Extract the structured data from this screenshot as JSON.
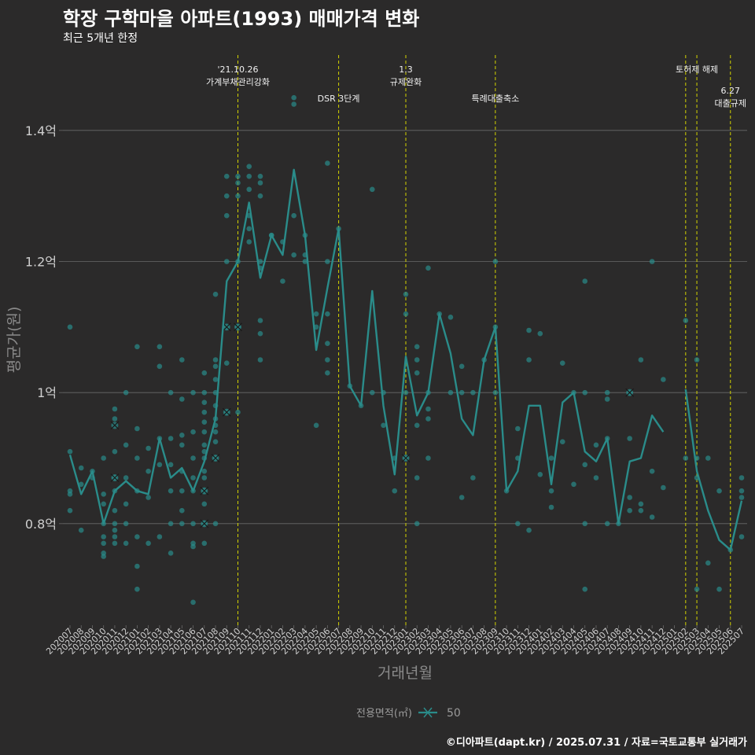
{
  "title": "학장 구학마을 아파트(1993) 매매가격 변화",
  "subtitle": "최근 5개년 한정",
  "credit": "©디아파트(dapt.kr) / 2025.07.31 / 자료=국토교통부 실거래가",
  "colors": {
    "background": "#2b2a2a",
    "line": "#2a8c8a",
    "points": "#2a8c8a",
    "event_line": "#d4d400",
    "grid": "#6a6a6a",
    "axis_text": "#cfcfcf"
  },
  "chart_data": {
    "type": "line",
    "xlabel": "거래년월",
    "ylabel": "평균가(원)",
    "yticks": [
      {
        "value": 0.8,
        "label": "0.8억"
      },
      {
        "value": 1.0,
        "label": "1억"
      },
      {
        "value": 1.2,
        "label": "1.2억"
      },
      {
        "value": 1.4,
        "label": "1.4억"
      }
    ],
    "ylim": [
      0.645,
      1.515
    ],
    "grid": true,
    "legend": {
      "title": "전용면적(㎡)",
      "entries": [
        "50"
      ],
      "position": "bottom"
    },
    "months": [
      "202007",
      "202008",
      "202009",
      "202010",
      "202011",
      "202012",
      "202101",
      "202102",
      "202103",
      "202104",
      "202105",
      "202106",
      "202107",
      "202108",
      "202109",
      "202110",
      "202111",
      "202112",
      "202201",
      "202202",
      "202203",
      "202204",
      "202205",
      "202206",
      "202207",
      "202208",
      "202209",
      "202210",
      "202211",
      "202212",
      "202301",
      "202302",
      "202303",
      "202304",
      "202305",
      "202306",
      "202307",
      "202308",
      "202309",
      "202310",
      "202311",
      "202312",
      "202401",
      "202402",
      "202403",
      "202404",
      "202405",
      "202406",
      "202407",
      "202408",
      "202409",
      "202410",
      "202411",
      "202412",
      "202501",
      "202502",
      "202503",
      "202504",
      "202505",
      "202506",
      "202507"
    ],
    "series": [
      {
        "name": "50",
        "values": [
          0.905,
          0.845,
          0.88,
          0.8,
          0.85,
          0.865,
          0.85,
          0.845,
          0.93,
          0.87,
          0.885,
          0.85,
          0.895,
          0.96,
          1.17,
          1.2,
          1.29,
          1.175,
          1.24,
          1.21,
          1.34,
          1.24,
          1.065,
          1.16,
          1.25,
          1.01,
          0.98,
          1.155,
          0.98,
          0.875,
          1.055,
          0.965,
          1.0,
          1.12,
          1.06,
          0.96,
          0.935,
          1.05,
          1.1,
          0.85,
          0.88,
          0.98,
          0.98,
          0.86,
          0.985,
          1.0,
          0.91,
          0.895,
          0.93,
          0.8,
          0.895,
          0.9,
          0.965,
          0.94,
          null,
          1.005,
          0.88,
          0.82,
          0.775,
          0.76,
          0.835
        ]
      }
    ],
    "scatter": [
      [
        0,
        1.1
      ],
      [
        0,
        0.91
      ],
      [
        0,
        0.85
      ],
      [
        0,
        0.845
      ],
      [
        0,
        0.82
      ],
      [
        1,
        0.885
      ],
      [
        1,
        0.86
      ],
      [
        1,
        0.79
      ],
      [
        2,
        0.88
      ],
      [
        2,
        0.87
      ],
      [
        3,
        0.9
      ],
      [
        3,
        0.845
      ],
      [
        3,
        0.83
      ],
      [
        3,
        0.8
      ],
      [
        3,
        0.78
      ],
      [
        3,
        0.77
      ],
      [
        3,
        0.755
      ],
      [
        3,
        0.75
      ],
      [
        4,
        0.975
      ],
      [
        4,
        0.96
      ],
      [
        4,
        0.91
      ],
      [
        4,
        0.87
      ],
      [
        4,
        0.85
      ],
      [
        4,
        0.82
      ],
      [
        4,
        0.8
      ],
      [
        4,
        0.79
      ],
      [
        4,
        0.78
      ],
      [
        4,
        0.77
      ],
      [
        5,
        1.0
      ],
      [
        5,
        0.92
      ],
      [
        5,
        0.87
      ],
      [
        5,
        0.83
      ],
      [
        5,
        0.8
      ],
      [
        5,
        0.77
      ],
      [
        6,
        1.07
      ],
      [
        6,
        0.945
      ],
      [
        6,
        0.9
      ],
      [
        6,
        0.85
      ],
      [
        6,
        0.78
      ],
      [
        6,
        0.735
      ],
      [
        6,
        0.7
      ],
      [
        7,
        0.915
      ],
      [
        7,
        0.88
      ],
      [
        7,
        0.84
      ],
      [
        7,
        0.77
      ],
      [
        8,
        1.07
      ],
      [
        8,
        1.04
      ],
      [
        8,
        0.93
      ],
      [
        8,
        0.89
      ],
      [
        8,
        0.78
      ],
      [
        9,
        1.0
      ],
      [
        9,
        0.93
      ],
      [
        9,
        0.89
      ],
      [
        9,
        0.85
      ],
      [
        9,
        0.8
      ],
      [
        9,
        0.755
      ],
      [
        10,
        1.05
      ],
      [
        10,
        0.99
      ],
      [
        10,
        0.935
      ],
      [
        10,
        0.92
      ],
      [
        10,
        0.88
      ],
      [
        10,
        0.85
      ],
      [
        10,
        0.82
      ],
      [
        10,
        0.8
      ],
      [
        11,
        1.0
      ],
      [
        11,
        0.94
      ],
      [
        11,
        0.9
      ],
      [
        11,
        0.87
      ],
      [
        11,
        0.85
      ],
      [
        11,
        0.8
      ],
      [
        11,
        0.77
      ],
      [
        11,
        0.765
      ],
      [
        11,
        0.68
      ],
      [
        12,
        1.03
      ],
      [
        12,
        1.0
      ],
      [
        12,
        0.985
      ],
      [
        12,
        0.97
      ],
      [
        12,
        0.955
      ],
      [
        12,
        0.94
      ],
      [
        12,
        0.92
      ],
      [
        12,
        0.91
      ],
      [
        12,
        0.9
      ],
      [
        12,
        0.88
      ],
      [
        12,
        0.87
      ],
      [
        12,
        0.85
      ],
      [
        12,
        0.83
      ],
      [
        12,
        0.8
      ],
      [
        12,
        0.77
      ],
      [
        13,
        1.15
      ],
      [
        13,
        1.05
      ],
      [
        13,
        1.04
      ],
      [
        13,
        1.02
      ],
      [
        13,
        1.0
      ],
      [
        13,
        0.98
      ],
      [
        13,
        0.96
      ],
      [
        13,
        0.95
      ],
      [
        13,
        0.94
      ],
      [
        13,
        0.925
      ],
      [
        13,
        0.9
      ],
      [
        13,
        0.8
      ],
      [
        14,
        1.33
      ],
      [
        14,
        1.3
      ],
      [
        14,
        1.27
      ],
      [
        14,
        1.2
      ],
      [
        14,
        1.1
      ],
      [
        14,
        1.045
      ],
      [
        14,
        0.97
      ],
      [
        15,
        1.33
      ],
      [
        15,
        1.32
      ],
      [
        15,
        1.3
      ],
      [
        15,
        1.2
      ],
      [
        15,
        1.1
      ],
      [
        15,
        0.97
      ],
      [
        16,
        1.345
      ],
      [
        16,
        1.33
      ],
      [
        16,
        1.31
      ],
      [
        16,
        1.27
      ],
      [
        16,
        1.25
      ],
      [
        16,
        1.23
      ],
      [
        17,
        1.33
      ],
      [
        17,
        1.32
      ],
      [
        17,
        1.3
      ],
      [
        17,
        1.2
      ],
      [
        17,
        1.19
      ],
      [
        17,
        1.11
      ],
      [
        17,
        1.09
      ],
      [
        17,
        1.05
      ],
      [
        18,
        1.24
      ],
      [
        18,
        1.24
      ],
      [
        19,
        1.23
      ],
      [
        19,
        1.17
      ],
      [
        20,
        1.45
      ],
      [
        20,
        1.44
      ],
      [
        20,
        1.27
      ],
      [
        20,
        1.21
      ],
      [
        21,
        1.24
      ],
      [
        21,
        1.21
      ],
      [
        21,
        1.2
      ],
      [
        22,
        1.12
      ],
      [
        22,
        1.1
      ],
      [
        22,
        0.95
      ],
      [
        23,
        1.35
      ],
      [
        23,
        1.2
      ],
      [
        23,
        1.12
      ],
      [
        23,
        1.075
      ],
      [
        23,
        1.05
      ],
      [
        23,
        1.03
      ],
      [
        24,
        1.25
      ],
      [
        25,
        1.01
      ],
      [
        26,
        0.98
      ],
      [
        27,
        1.31
      ],
      [
        27,
        1.0
      ],
      [
        28,
        1.0
      ],
      [
        28,
        0.95
      ],
      [
        29,
        0.9
      ],
      [
        29,
        0.85
      ],
      [
        30,
        1.15
      ],
      [
        30,
        1.12
      ],
      [
        30,
        1.0
      ],
      [
        30,
        0.9
      ],
      [
        31,
        1.07
      ],
      [
        31,
        1.05
      ],
      [
        31,
        1.03
      ],
      [
        31,
        0.95
      ],
      [
        31,
        0.87
      ],
      [
        31,
        0.8
      ],
      [
        32,
        1.19
      ],
      [
        32,
        1.0
      ],
      [
        32,
        0.975
      ],
      [
        32,
        0.96
      ],
      [
        32,
        0.9
      ],
      [
        33,
        1.12
      ],
      [
        34,
        1.115
      ],
      [
        34,
        1.0
      ],
      [
        35,
        1.04
      ],
      [
        35,
        1.0
      ],
      [
        35,
        0.84
      ],
      [
        36,
        1.0
      ],
      [
        36,
        0.87
      ],
      [
        37,
        1.05
      ],
      [
        38,
        1.2
      ],
      [
        38,
        1.1
      ],
      [
        38,
        1.0
      ],
      [
        39,
        0.85
      ],
      [
        40,
        0.945
      ],
      [
        40,
        0.9
      ],
      [
        40,
        0.8
      ],
      [
        41,
        1.095
      ],
      [
        41,
        1.05
      ],
      [
        41,
        0.79
      ],
      [
        42,
        1.09
      ],
      [
        42,
        0.875
      ],
      [
        43,
        0.9
      ],
      [
        43,
        0.85
      ],
      [
        43,
        0.825
      ],
      [
        44,
        1.045
      ],
      [
        44,
        0.925
      ],
      [
        45,
        1.0
      ],
      [
        45,
        0.86
      ],
      [
        46,
        1.17
      ],
      [
        46,
        1.0
      ],
      [
        46,
        0.89
      ],
      [
        46,
        0.8
      ],
      [
        46,
        0.7
      ],
      [
        47,
        0.92
      ],
      [
        47,
        0.87
      ],
      [
        48,
        1.0
      ],
      [
        48,
        0.99
      ],
      [
        48,
        0.93
      ],
      [
        48,
        0.8
      ],
      [
        49,
        0.8
      ],
      [
        50,
        1.0
      ],
      [
        50,
        0.93
      ],
      [
        50,
        0.84
      ],
      [
        50,
        0.82
      ],
      [
        51,
        1.05
      ],
      [
        51,
        0.83
      ],
      [
        51,
        0.82
      ],
      [
        52,
        1.2
      ],
      [
        52,
        0.88
      ],
      [
        52,
        0.81
      ],
      [
        53,
        1.02
      ],
      [
        53,
        0.855
      ],
      [
        55,
        1.11
      ],
      [
        55,
        0.9
      ],
      [
        56,
        1.05
      ],
      [
        56,
        0.9
      ],
      [
        56,
        0.87
      ],
      [
        56,
        0.7
      ],
      [
        57,
        0.9
      ],
      [
        57,
        0.74
      ],
      [
        58,
        0.85
      ],
      [
        58,
        0.7
      ],
      [
        59,
        0.76
      ],
      [
        60,
        0.87
      ],
      [
        60,
        0.85
      ],
      [
        60,
        0.84
      ],
      [
        60,
        0.78
      ]
    ],
    "markers": [
      [
        4,
        0.95
      ],
      [
        4,
        0.87
      ],
      [
        12,
        0.85
      ],
      [
        12,
        0.8
      ],
      [
        13,
        0.9
      ],
      [
        14,
        0.97
      ],
      [
        14,
        1.1
      ],
      [
        15,
        1.1
      ],
      [
        30,
        0.9
      ],
      [
        50,
        1.0
      ]
    ],
    "events": [
      {
        "x": 15.0,
        "label": "'21.10.26\n가계부채관리강화",
        "row": 0
      },
      {
        "x": 24.0,
        "label": "DSR 3단계",
        "row": 1
      },
      {
        "x": 30.0,
        "label": "1.3\n규제완화",
        "row": 0
      },
      {
        "x": 38.0,
        "label": "특례대출축소",
        "row": 1
      },
      {
        "x": 55.0,
        "label": "",
        "row": 0
      },
      {
        "x": 56.0,
        "label": "토허제 해제",
        "row": 0
      },
      {
        "x": 59.0,
        "label": "6.27\n대출규제",
        "row": 2
      }
    ]
  }
}
